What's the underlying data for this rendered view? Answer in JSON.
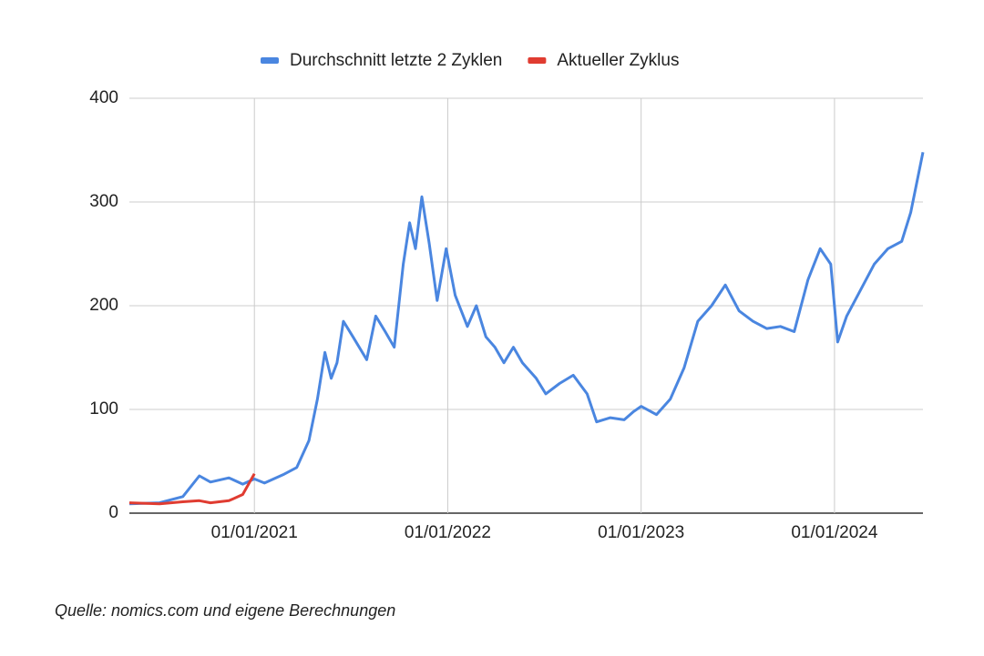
{
  "chart_data": {
    "type": "line",
    "x": [
      "2020-05-10",
      "2020-07-06",
      "2020-08-19",
      "2020-09-19",
      "2020-10-10",
      "2020-11-14",
      "2020-12-10",
      "2021-01-01",
      "2021-01-20",
      "2021-02-24",
      "2021-03-22",
      "2021-04-14",
      "2021-04-30",
      "2021-05-14",
      "2021-05-26",
      "2021-06-06",
      "2021-06-18",
      "2021-07-06",
      "2021-08-01",
      "2021-08-18",
      "2021-09-05",
      "2021-09-22",
      "2021-10-09",
      "2021-10-21",
      "2021-11-01",
      "2021-11-13",
      "2021-11-27",
      "2021-12-12",
      "2021-12-29",
      "2022-01-15",
      "2022-02-07",
      "2022-02-24",
      "2022-03-14",
      "2022-03-31",
      "2022-04-17",
      "2022-05-05",
      "2022-05-22",
      "2022-06-17",
      "2022-07-05",
      "2022-07-31",
      "2022-08-26",
      "2022-09-21",
      "2022-10-09",
      "2022-11-04",
      "2022-11-30",
      "2022-12-18",
      "2023-01-01",
      "2023-01-30",
      "2023-02-25",
      "2023-03-23",
      "2023-04-18",
      "2023-05-14",
      "2023-06-09",
      "2023-07-05",
      "2023-07-31",
      "2023-08-26",
      "2023-09-21",
      "2023-10-17",
      "2023-11-12",
      "2023-12-05",
      "2023-12-25",
      "2024-01-07",
      "2024-01-24",
      "2024-02-19",
      "2024-03-16",
      "2024-04-11",
      "2024-05-07",
      "2024-05-24",
      "2024-06-16"
    ],
    "series": [
      {
        "name": "Durchschnitt letzte 2 Zyklen",
        "color": "#4a86e0",
        "values": [
          9,
          10,
          16,
          36,
          30,
          34,
          28,
          33,
          29,
          37,
          44,
          70,
          110,
          155,
          130,
          145,
          185,
          170,
          148,
          190,
          175,
          160,
          240,
          280,
          255,
          305,
          260,
          205,
          255,
          210,
          180,
          200,
          170,
          160,
          145,
          160,
          145,
          130,
          115,
          125,
          133,
          115,
          88,
          92,
          90,
          98,
          103,
          95,
          110,
          140,
          185,
          200,
          220,
          195,
          185,
          178,
          180,
          175,
          225,
          255,
          240,
          165,
          190,
          215,
          240,
          255,
          262,
          290,
          348
        ]
      },
      {
        "name": "Aktueller Zyklus",
        "color": "#e03c31",
        "values": [
          10,
          9,
          11,
          12,
          10,
          12,
          18,
          38,
          null,
          null,
          null,
          null,
          null,
          null,
          null,
          null,
          null,
          null,
          null,
          null,
          null,
          null,
          null,
          null,
          null,
          null,
          null,
          null,
          null,
          null,
          null,
          null,
          null,
          null,
          null,
          null,
          null,
          null,
          null,
          null,
          null,
          null,
          null,
          null,
          null,
          null,
          null,
          null,
          null,
          null,
          null,
          null,
          null,
          null,
          null,
          null,
          null,
          null,
          null,
          null,
          null,
          null,
          null,
          null,
          null,
          null,
          null,
          null,
          null
        ]
      }
    ],
    "xlim": [
      "2020-05-10",
      "2024-06-16"
    ],
    "xticks": [
      {
        "value": "2021-01-01",
        "label": "01/01/2021"
      },
      {
        "value": "2022-01-01",
        "label": "01/01/2022"
      },
      {
        "value": "2023-01-01",
        "label": "01/01/2023"
      },
      {
        "value": "2024-01-01",
        "label": "01/01/2024"
      }
    ],
    "ylim": [
      0,
      400
    ],
    "yticks": [
      0,
      100,
      200,
      300,
      400
    ],
    "grid": true,
    "legend": "top"
  },
  "source": "Quelle: nomics.com und eigene Berechnungen"
}
